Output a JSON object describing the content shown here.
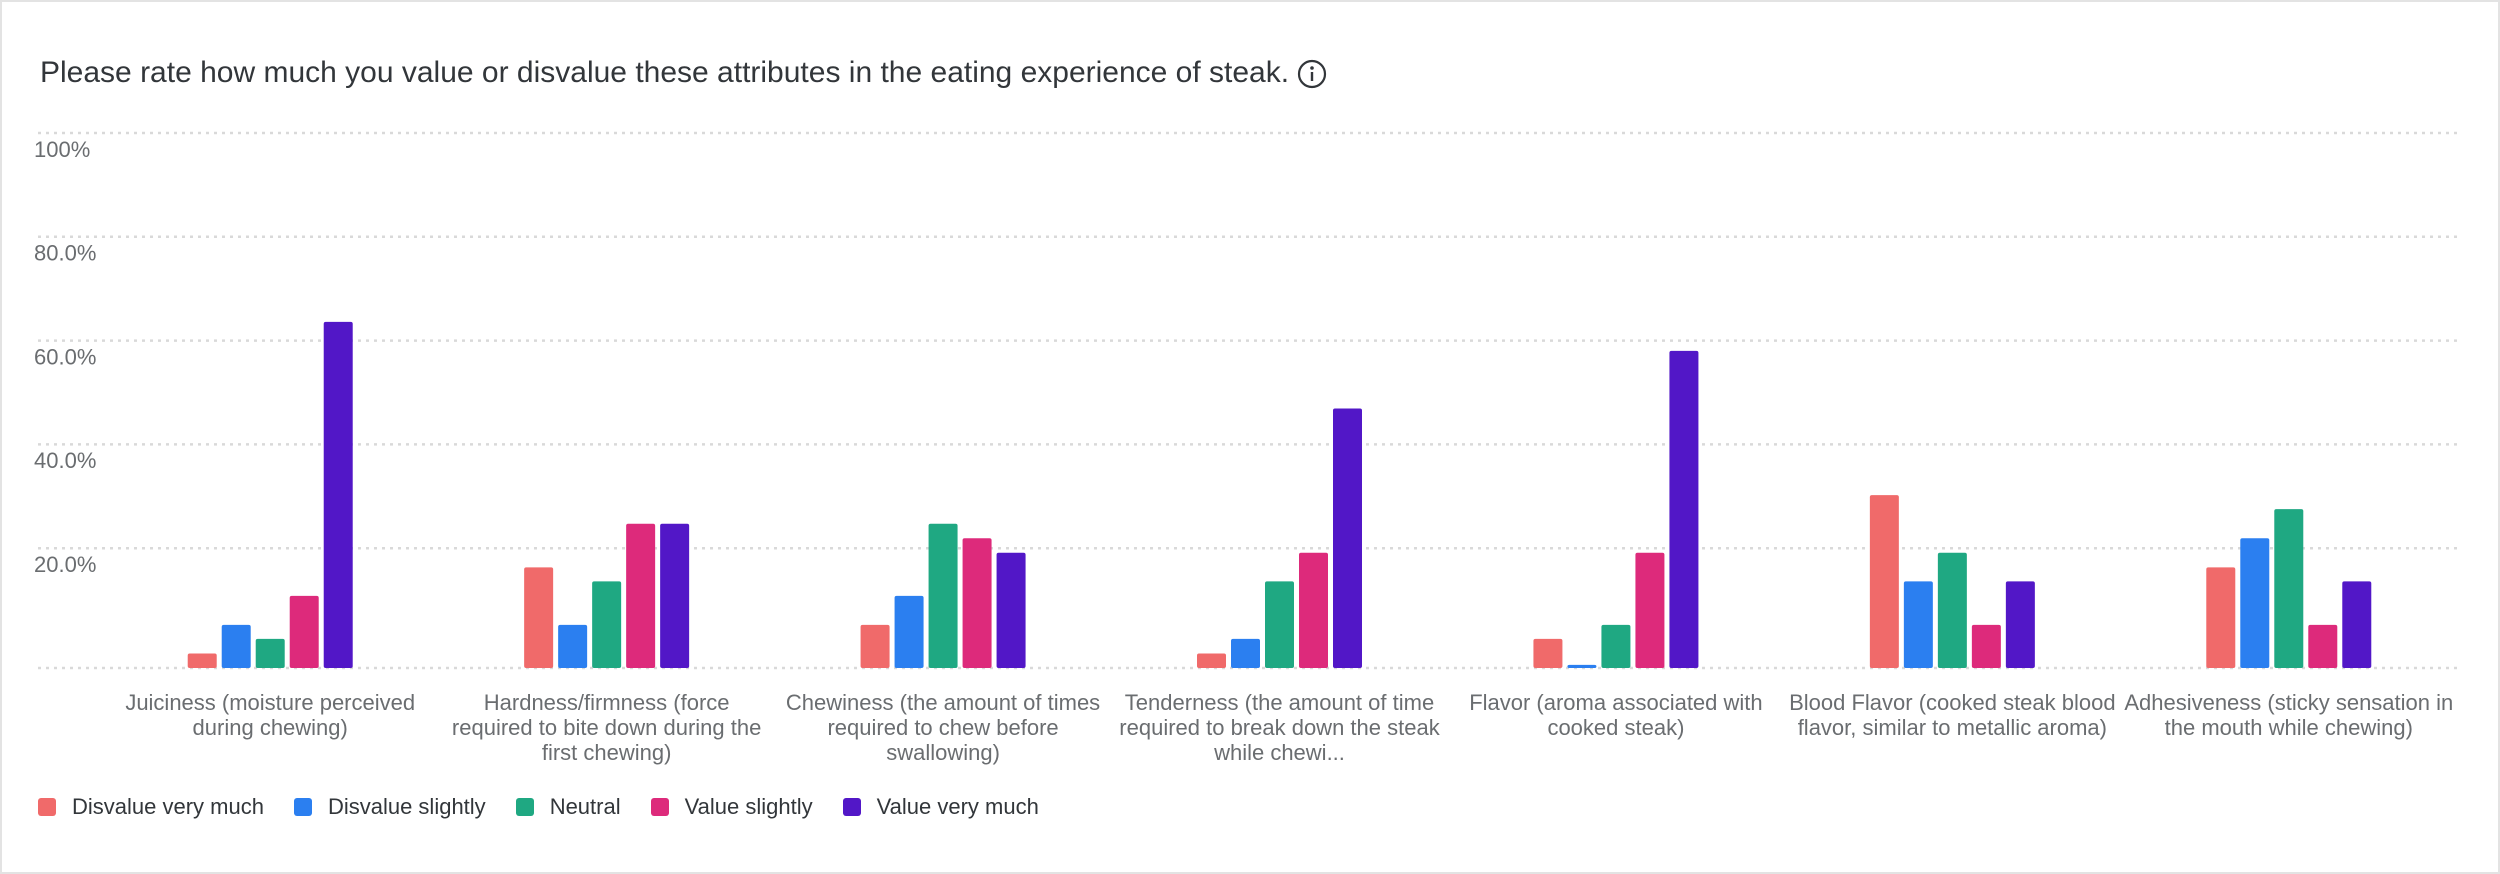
{
  "chart_data": {
    "type": "bar",
    "title": "Please rate how much you value or disvalue these attributes in the eating experience of steak.",
    "categories": [
      "Juiciness (moisture perceived during chewing)",
      "Hardness/firmness (force required to bite down during the first chewing)",
      "Chewiness (the amount of times required to chew before swallowing)",
      "Tenderness (the amount of time required to break down the steak while chewi...",
      "Flavor (aroma associated with cooked steak)",
      "Blood Flavor (cooked steak blood flavor, similar to metallic aroma)",
      "Adhesiveness (sticky sensation in the mouth while chewing)"
    ],
    "series": [
      {
        "name": "Disvalue very much",
        "color": "#f06a6a",
        "values": [
          2.8,
          19.4,
          8.3,
          2.8,
          5.6,
          33.3,
          19.4
        ]
      },
      {
        "name": "Disvalue slightly",
        "color": "#2b7ff0",
        "values": [
          8.3,
          8.3,
          13.9,
          5.6,
          0.6,
          16.7,
          25
        ]
      },
      {
        "name": "Neutral",
        "color": "#1fa882",
        "values": [
          5.6,
          16.7,
          27.8,
          16.7,
          8.3,
          22.2,
          30.6
        ]
      },
      {
        "name": "Value slightly",
        "color": "#dd2a7b",
        "values": [
          13.9,
          27.8,
          25,
          22.2,
          22.2,
          8.3,
          8.3
        ]
      },
      {
        "name": "Value very much",
        "color": "#5217c7",
        "values": [
          66.7,
          27.8,
          22.2,
          50,
          61.1,
          16.7,
          16.7
        ]
      }
    ],
    "ylim": [
      0,
      100
    ],
    "yticks": [
      {
        "value": 20,
        "label": "20.0%"
      },
      {
        "value": 40,
        "label": "40.0%"
      },
      {
        "value": 60,
        "label": "60.0%"
      },
      {
        "value": 80,
        "label": "80.0%"
      },
      {
        "value": 100,
        "label": "100%"
      }
    ],
    "grid": true
  }
}
